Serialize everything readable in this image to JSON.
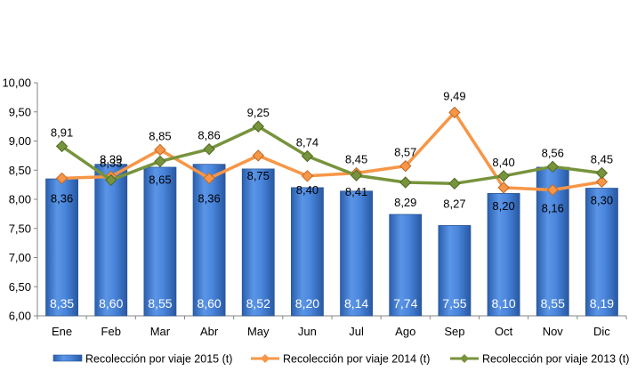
{
  "chart_data": {
    "type": "bar",
    "categories": [
      "Ene",
      "Feb",
      "Mar",
      "Abr",
      "May",
      "Jun",
      "Jul",
      "Ago",
      "Sep",
      "Oct",
      "Nov",
      "Dic"
    ],
    "yticks": [
      "6,00",
      "6,50",
      "7,00",
      "7,50",
      "8,00",
      "8,50",
      "9,00",
      "9,50",
      "10,00"
    ],
    "ylim": [
      6,
      10
    ],
    "series": [
      {
        "name": "Recolección por viaje 2015 (t)",
        "kind": "bar",
        "color": "#3d7ad4",
        "values": [
          8.35,
          8.6,
          8.55,
          8.6,
          8.52,
          8.2,
          8.14,
          7.74,
          7.55,
          8.1,
          8.55,
          8.19
        ],
        "labels": [
          "8,35",
          "8,60",
          "8,55",
          "8,60",
          "8,52",
          "8,20",
          "8,14",
          "7,74",
          "7,55",
          "8,10",
          "8,55",
          "8,19"
        ]
      },
      {
        "name": "Recolección por viaje 2014 (t)",
        "kind": "line",
        "color": "#f79646",
        "values": [
          8.36,
          8.39,
          8.85,
          8.36,
          8.75,
          8.4,
          8.45,
          8.57,
          9.49,
          8.2,
          8.16,
          8.3
        ],
        "labels": [
          "8,36",
          "8,39",
          "8,85",
          "8,36",
          "8,75",
          "8,40",
          "8,45",
          "8,57",
          "9,49",
          "8,20",
          "8,16",
          "8,30"
        ]
      },
      {
        "name": "Recolección por viaje 2013 (t)",
        "kind": "line",
        "color": "#77933c",
        "values": [
          8.91,
          8.33,
          8.65,
          8.86,
          9.25,
          8.74,
          8.41,
          8.29,
          8.27,
          8.4,
          8.56,
          8.45
        ],
        "labels": [
          "8,91",
          "8,33",
          "8,65",
          "8,86",
          "9,25",
          "8,74",
          "8,41",
          "8,29",
          "8,27",
          "8,40",
          "8,56",
          "8,45"
        ]
      }
    ],
    "grid": false,
    "legend": "bottom"
  }
}
